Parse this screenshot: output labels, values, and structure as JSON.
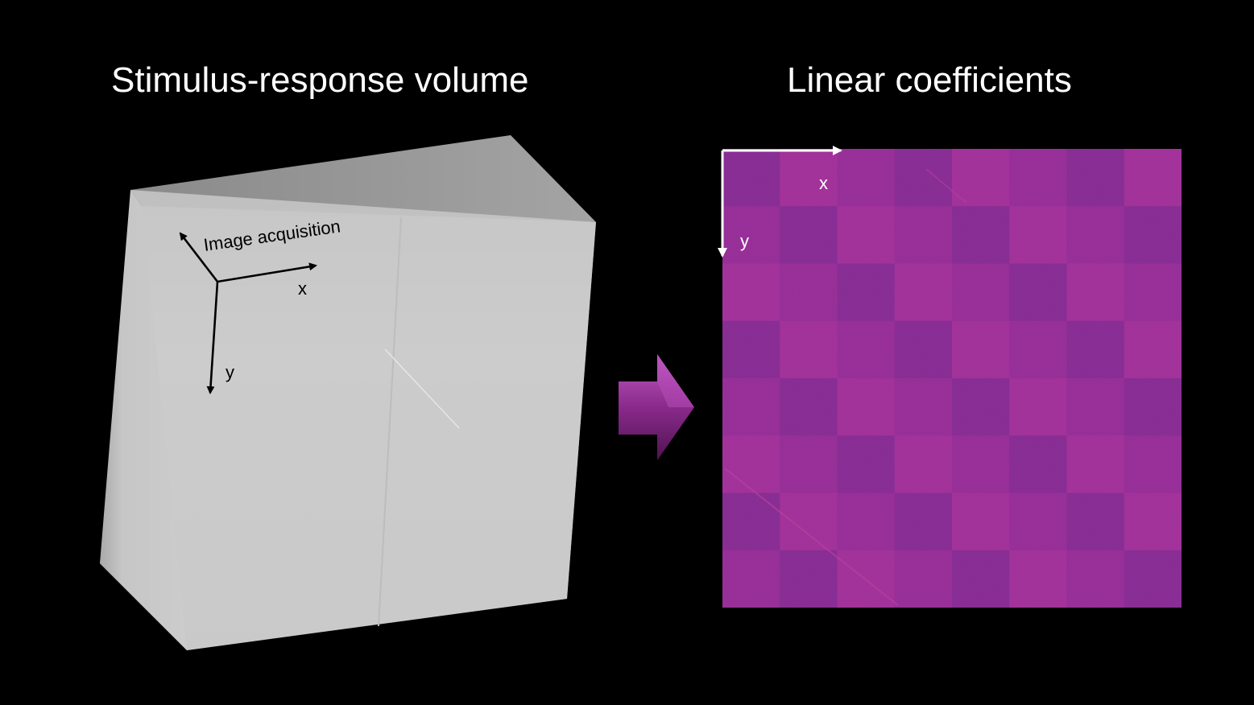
{
  "titles": {
    "left": "Stimulus-response volume",
    "right": "Linear coefficients"
  },
  "volume": {
    "axis_time_label": "Image acquisition",
    "axis_x_label": "x",
    "axis_y_label": "y",
    "colors": {
      "front_face": "#c9c9c9",
      "top_face": "#8f8f8f",
      "side_face": "#d8d8d8",
      "axis": "#000000"
    }
  },
  "arrow": {
    "icon": "right-arrow-icon",
    "color": "#8a2a8c"
  },
  "coefficients": {
    "axis_x_label": "x",
    "axis_y_label": "y",
    "grid_rows": 8,
    "grid_cols": 8,
    "colors": {
      "base": "#9a2e98",
      "dark": "#7a2a8e",
      "light": "#b0359a",
      "axis": "#ffffff"
    }
  }
}
